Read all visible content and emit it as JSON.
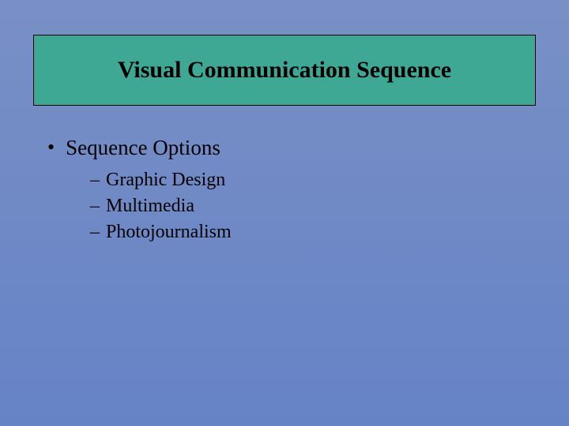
{
  "colors": {
    "background_top": "#7990c6",
    "background_bottom": "#6683c6",
    "title_bg": "#3fa895",
    "title_border": "#000000",
    "text": "#000000"
  },
  "title": "Visual Communication Sequence",
  "content": {
    "bullet_1": {
      "label": "Sequence Options",
      "sub_items": [
        "Graphic Design",
        "Multimedia",
        "Photojournalism"
      ]
    }
  }
}
